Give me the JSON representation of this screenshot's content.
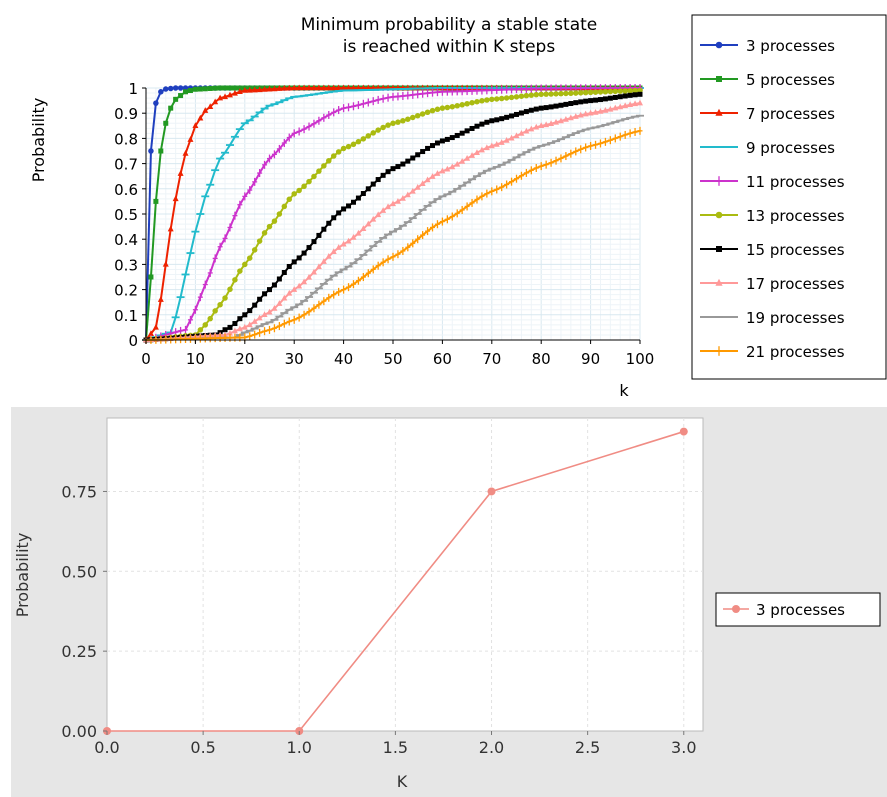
{
  "chart_data": [
    {
      "type": "line",
      "title": "Minimum probability a stable state is reached within K steps",
      "title_lines": [
        "Minimum probability a stable state",
        "is reached within K steps"
      ],
      "xlabel": "k",
      "ylabel": "Probability",
      "xlim": [
        0,
        100
      ],
      "ylim": [
        0,
        1
      ],
      "xticks": [
        "0",
        "10",
        "20",
        "30",
        "40",
        "50",
        "60",
        "70",
        "80",
        "90",
        "100"
      ],
      "yticks": [
        "0",
        "0.1",
        "0.2",
        "0.3",
        "0.4",
        "0.5",
        "0.6",
        "0.7",
        "0.8",
        "0.9",
        "1"
      ],
      "grid": true,
      "legend_position": "right",
      "series": [
        {
          "name": "3 processes",
          "color": "#1f3fbf",
          "marker": "circle",
          "x": [
            0,
            1,
            2,
            3,
            4,
            6,
            10,
            20,
            40,
            100
          ],
          "y": [
            0,
            0.75,
            0.94,
            0.985,
            0.996,
            1,
            1,
            1,
            1,
            1
          ]
        },
        {
          "name": "5 processes",
          "color": "#229922",
          "marker": "square",
          "x": [
            0,
            1,
            2,
            3,
            4,
            5,
            6,
            8,
            10,
            15,
            20,
            40,
            100
          ],
          "y": [
            0,
            0.25,
            0.55,
            0.75,
            0.86,
            0.92,
            0.955,
            0.985,
            0.995,
            1,
            1,
            1,
            1
          ]
        },
        {
          "name": "7 processes",
          "color": "#ee2200",
          "marker": "triangle",
          "x": [
            0,
            2,
            3,
            4,
            5,
            6,
            7,
            8,
            10,
            12,
            15,
            20,
            30,
            100
          ],
          "y": [
            0,
            0.05,
            0.16,
            0.3,
            0.44,
            0.56,
            0.66,
            0.74,
            0.85,
            0.91,
            0.96,
            0.99,
            1,
            1
          ]
        },
        {
          "name": "9 processes",
          "color": "#22bbcc",
          "marker": "dash",
          "x": [
            0,
            5,
            6,
            7,
            8,
            10,
            12,
            15,
            20,
            25,
            30,
            40,
            60,
            100
          ],
          "y": [
            0,
            0.03,
            0.09,
            0.17,
            0.26,
            0.43,
            0.57,
            0.72,
            0.86,
            0.93,
            0.965,
            0.99,
            1,
            1
          ]
        },
        {
          "name": "11 processes",
          "color": "#cc33cc",
          "marker": "plus",
          "x": [
            0,
            8,
            10,
            12,
            15,
            20,
            25,
            30,
            40,
            50,
            60,
            80,
            100
          ],
          "y": [
            0,
            0.04,
            0.12,
            0.22,
            0.37,
            0.57,
            0.72,
            0.82,
            0.92,
            0.965,
            0.985,
            0.998,
            1
          ]
        },
        {
          "name": "13 processes",
          "color": "#aabb11",
          "marker": "circle",
          "x": [
            0,
            10,
            12,
            15,
            20,
            25,
            30,
            40,
            50,
            60,
            70,
            80,
            100
          ],
          "y": [
            0,
            0.02,
            0.06,
            0.14,
            0.3,
            0.45,
            0.58,
            0.76,
            0.86,
            0.92,
            0.955,
            0.975,
            0.99
          ]
        },
        {
          "name": "15 processes",
          "color": "#000000",
          "marker": "square",
          "x": [
            0,
            14,
            17,
            20,
            25,
            30,
            40,
            50,
            60,
            70,
            80,
            90,
            100
          ],
          "y": [
            0,
            0.02,
            0.05,
            0.1,
            0.2,
            0.31,
            0.52,
            0.68,
            0.79,
            0.87,
            0.92,
            0.95,
            0.975
          ]
        },
        {
          "name": "17 processes",
          "color": "#ff9999",
          "marker": "triangle",
          "x": [
            0,
            16,
            20,
            25,
            30,
            40,
            50,
            60,
            70,
            80,
            90,
            100
          ],
          "y": [
            0,
            0.02,
            0.05,
            0.11,
            0.2,
            0.38,
            0.54,
            0.67,
            0.77,
            0.85,
            0.9,
            0.94
          ]
        },
        {
          "name": "19 processes",
          "color": "#999999",
          "marker": "dash",
          "x": [
            0,
            18,
            20,
            25,
            30,
            40,
            50,
            60,
            70,
            80,
            90,
            100
          ],
          "y": [
            0,
            0.01,
            0.03,
            0.07,
            0.13,
            0.28,
            0.43,
            0.57,
            0.68,
            0.77,
            0.84,
            0.89
          ]
        },
        {
          "name": "21 processes",
          "color": "#ff9900",
          "marker": "plus",
          "x": [
            0,
            20,
            25,
            30,
            40,
            50,
            60,
            70,
            80,
            90,
            100
          ],
          "y": [
            0,
            0.01,
            0.04,
            0.08,
            0.2,
            0.33,
            0.47,
            0.59,
            0.69,
            0.77,
            0.83
          ]
        }
      ]
    },
    {
      "type": "line",
      "title": "",
      "xlabel": "K",
      "ylabel": "Probability",
      "xlim": [
        0,
        3.1
      ],
      "ylim": [
        0,
        0.98
      ],
      "xticks": [
        "0.0",
        "0.5",
        "1.0",
        "1.5",
        "2.0",
        "2.5",
        "3.0"
      ],
      "yticks": [
        "0.00",
        "0.25",
        "0.50",
        "0.75"
      ],
      "grid": true,
      "legend_position": "right",
      "series": [
        {
          "name": "3 processes",
          "color": "#f08c84",
          "marker": "circle",
          "x": [
            0,
            1,
            2,
            3
          ],
          "y": [
            0,
            0,
            0.75,
            0.9375
          ]
        }
      ]
    }
  ]
}
